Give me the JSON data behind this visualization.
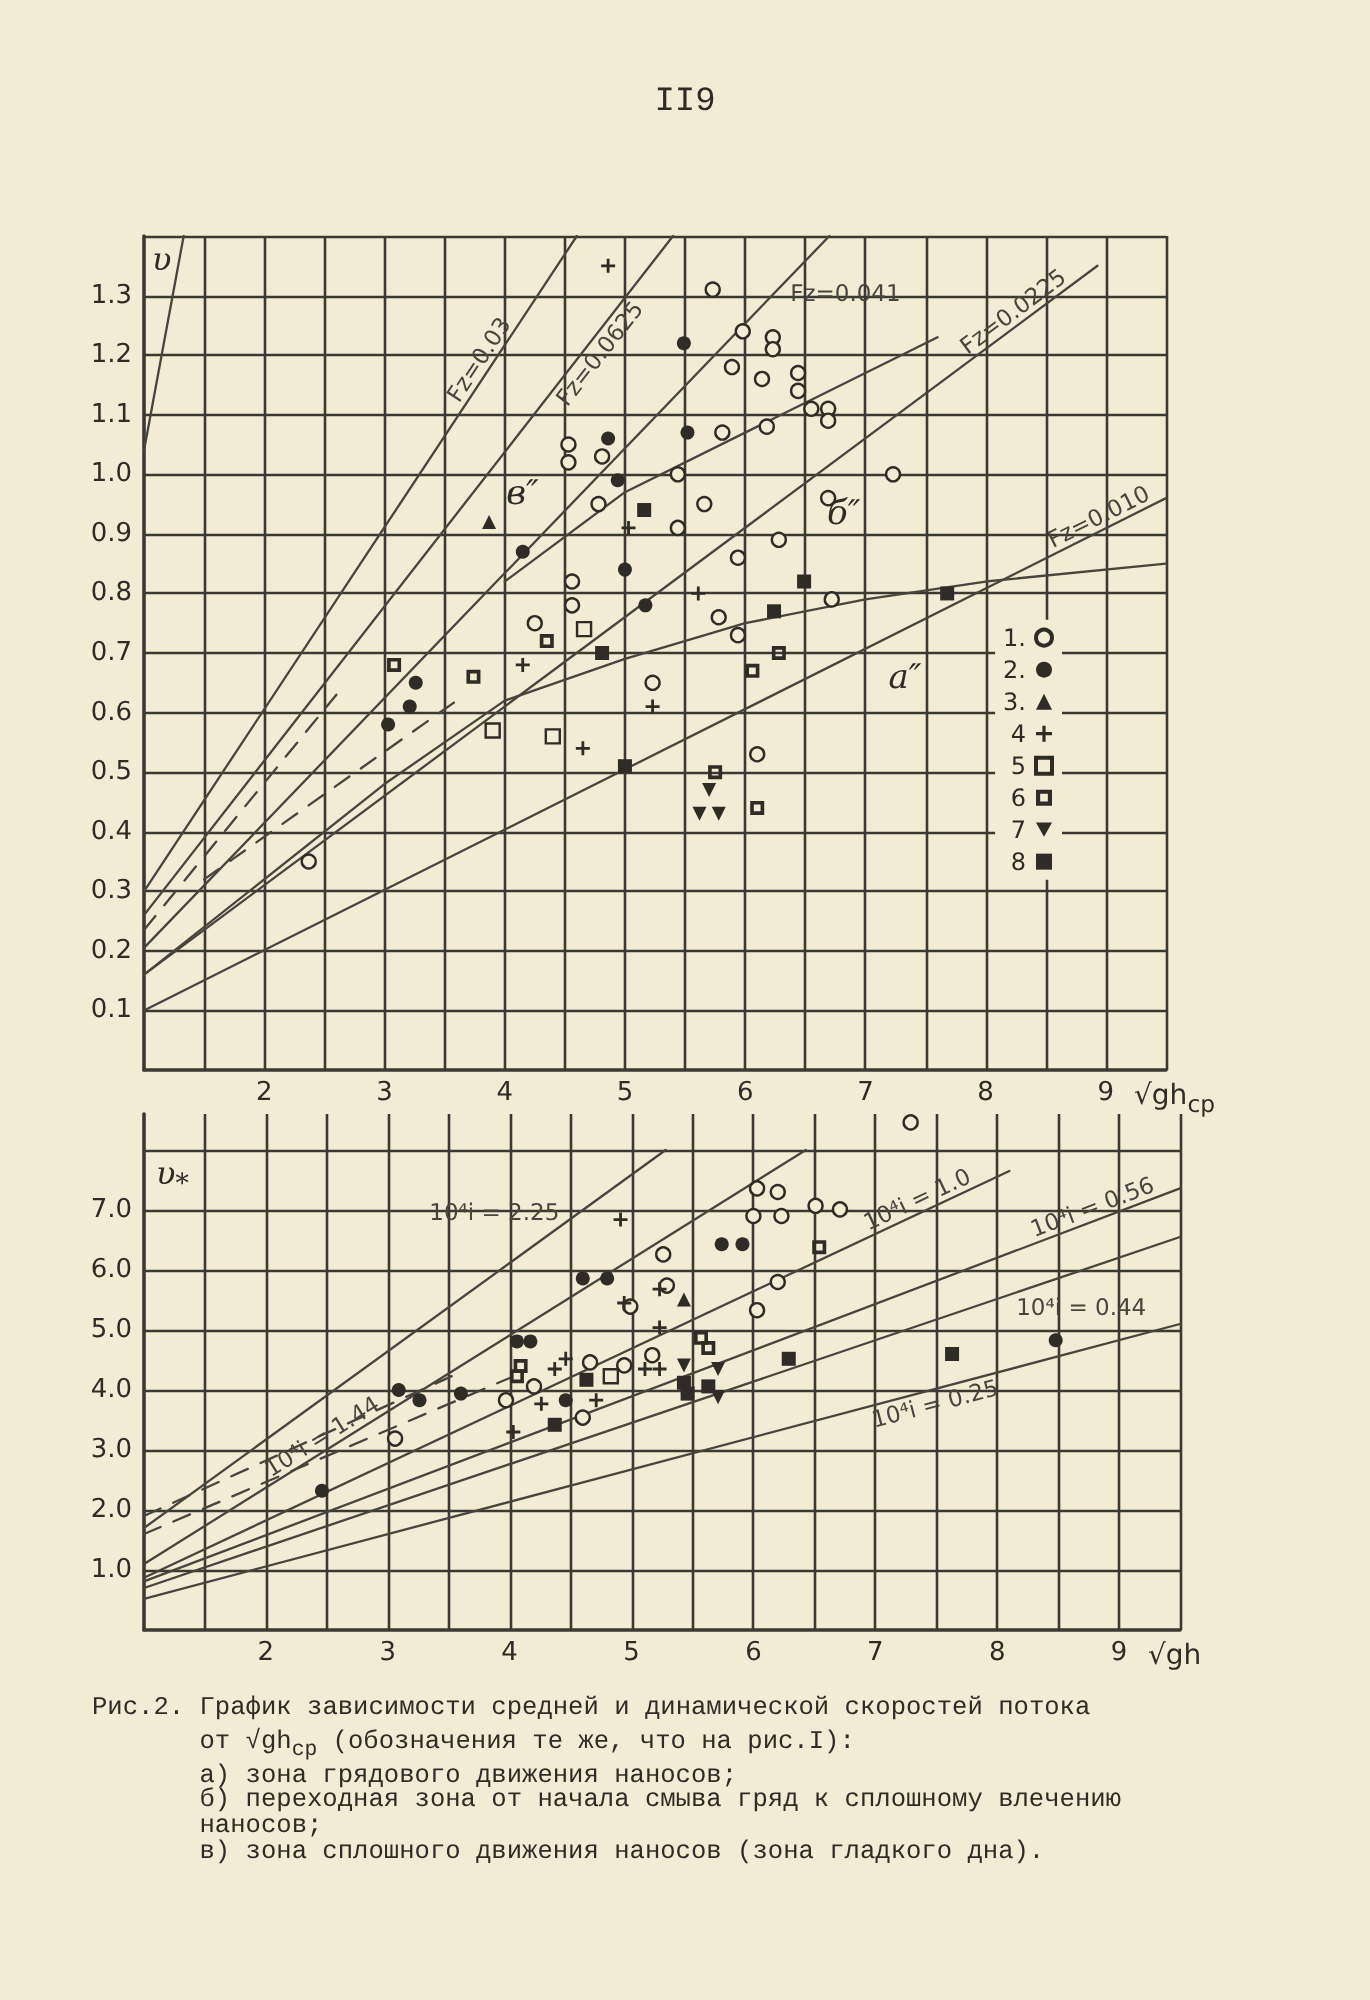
{
  "chart_data": [
    {
      "type": "scatter",
      "xlabel": "√gh$_{ср}$",
      "ylabel": "υ",
      "xlim": [
        1,
        9.5
      ],
      "ylim": [
        0,
        1.4
      ],
      "xticks": [
        {
          "value": 1.5,
          "label": null
        },
        2,
        {
          "value": 2.5,
          "label": null
        },
        3,
        {
          "value": 3.5,
          "label": null
        },
        4,
        {
          "value": 4.5,
          "label": null
        },
        5,
        {
          "value": 5.5,
          "label": null
        },
        6,
        {
          "value": 6.5,
          "label": null
        },
        7,
        {
          "value": 7.5,
          "label": null
        },
        8,
        {
          "value": 8.5,
          "label": null
        },
        9,
        {
          "value": 9.5,
          "label": null
        }
      ],
      "yticks": [
        0.1,
        0.2,
        0.3,
        0.4,
        0.5,
        0.6,
        0.7,
        0.8,
        0.9,
        {
          "value": 1,
          "label": "1.0"
        },
        1.1,
        1.2,
        1.3,
        {
          "value": 1.4,
          "label": null
        }
      ],
      "grid": true,
      "legend": "right",
      "annotations": [
        "II9",
        "в″",
        "б″",
        "а″"
      ],
      "series": [
        {
          "type": "line",
          "marker": "none",
          "line_style": "solid",
          "color": "#48443e",
          "x": [
            1,
            1.33
          ],
          "values": [
            1.04,
            1.4
          ]
        },
        {
          "type": "line",
          "name": "Fz=0.03",
          "marker": "none",
          "line_style": "solid",
          "color": "#48443e",
          "x": [
            1,
            4.6
          ],
          "values": [
            0.3,
            1.4
          ]
        },
        {
          "type": "line",
          "name": "Fz=0.0625",
          "marker": "none",
          "line_style": "solid",
          "color": "#48443e",
          "x": [
            1,
            5.4
          ],
          "values": [
            0.26,
            1.4
          ]
        },
        {
          "type": "line",
          "name": "Fz=0.041",
          "marker": "none",
          "line_style": "solid",
          "color": "#48443e",
          "x": [
            1,
            6.7
          ],
          "values": [
            0.205,
            1.4
          ]
        },
        {
          "type": "line",
          "name": "Fz=0.0225",
          "marker": "none",
          "line_style": "solid",
          "color": "#48443e",
          "x": [
            1,
            8.93
          ],
          "values": [
            0.16,
            1.35
          ]
        },
        {
          "type": "line",
          "name": "Fz=0.010",
          "marker": "none",
          "line_style": "solid",
          "color": "#48443e",
          "x": [
            1,
            9.5
          ],
          "values": [
            0.1,
            0.96
          ]
        },
        {
          "type": "line",
          "marker": "none",
          "line_style": "solid",
          "color": "#48443e",
          "x": [
            1,
            3,
            4,
            5,
            6,
            7,
            8,
            9.5
          ],
          "values": [
            0.16,
            0.48,
            0.62,
            0.69,
            0.75,
            0.79,
            0.82,
            0.85
          ]
        },
        {
          "type": "line",
          "marker": "none",
          "line_style": "solid",
          "color": "#48443e",
          "x": [
            4,
            5,
            6.1,
            7.6
          ],
          "values": [
            0.82,
            0.97,
            1.08,
            1.23
          ]
        },
        {
          "type": "line",
          "marker": "none",
          "line_style": "dashed",
          "color": "#48443e",
          "x": [
            1,
            2.6
          ],
          "values": [
            0.235,
            0.63
          ]
        },
        {
          "type": "line",
          "marker": "none",
          "line_style": "dashed",
          "color": "#48443e",
          "x": [
            1.5,
            3.6
          ],
          "values": [
            0.32,
            0.62
          ]
        },
        {
          "name": "1.",
          "marker": "circle",
          "color": "#2f2b26",
          "x": [
            5.73,
            5.98,
            6.23,
            6.23,
            5.89,
            6.14,
            6.44,
            6.44,
            6.55,
            6.69,
            6.69,
            6.18,
            5.44,
            5.66,
            5.44,
            6.28,
            6.69,
            7.23,
            5.94,
            5.78,
            5.94,
            4.53,
            4.53,
            4.56,
            4.56,
            4.25,
            5.23,
            6.1,
            2.37,
            4.81,
            4.78,
            5.81,
            6.72
          ],
          "values": [
            1.31,
            1.24,
            1.23,
            1.21,
            1.18,
            1.16,
            1.17,
            1.14,
            1.11,
            1.11,
            1.09,
            1.08,
            1.0,
            0.95,
            0.91,
            0.89,
            0.96,
            1.0,
            0.86,
            0.76,
            0.73,
            1.05,
            1.02,
            0.82,
            0.78,
            0.75,
            0.65,
            0.53,
            0.35,
            1.03,
            0.95,
            1.07,
            0.79
          ]
        },
        {
          "name": "2.",
          "marker": "circle",
          "color": "#2f2b26",
          "x": [
            5.49,
            5.52,
            4.15,
            5.0,
            5.17,
            3.26,
            3.21,
            3.03,
            4.94,
            4.86
          ],
          "values": [
            1.22,
            1.07,
            0.87,
            0.84,
            0.78,
            0.65,
            0.61,
            0.58,
            0.99,
            1.06
          ]
        },
        {
          "name": "3.",
          "marker": "triangle",
          "color": "#2f2b26",
          "x": [
            3.87
          ],
          "values": [
            0.92
          ]
        },
        {
          "name": "4",
          "marker": "cross",
          "color": "#2f2b26",
          "x": [
            4.86,
            5.61,
            5.23,
            4.15,
            4.65,
            5.03
          ],
          "values": [
            1.35,
            0.8,
            0.61,
            0.68,
            0.54,
            0.91
          ]
        },
        {
          "name": "5",
          "marker": "square",
          "color": "#2f2b26",
          "x": [
            4.4,
            3.9,
            4.66
          ],
          "values": [
            0.56,
            0.57,
            0.74
          ]
        },
        {
          "name": "6",
          "marker": "square",
          "color": "#2f2b26",
          "x": [
            3.08,
            3.74,
            6.06,
            6.28,
            5.75,
            6.1,
            4.35
          ],
          "values": [
            0.68,
            0.66,
            0.67,
            0.7,
            0.5,
            0.44,
            0.72
          ]
        },
        {
          "name": "7",
          "marker": "triangle",
          "color": "#2f2b26",
          "x": [
            5.7,
            5.62,
            5.78
          ],
          "values": [
            0.47,
            0.43,
            0.43
          ]
        },
        {
          "name": "8",
          "marker": "square",
          "color": "#2f2b26",
          "x": [
            5.16,
            6.49,
            6.24,
            7.68,
            5.0,
            4.81
          ],
          "values": [
            0.94,
            0.82,
            0.77,
            0.8,
            0.51,
            0.7
          ]
        }
      ]
    },
    {
      "type": "scatter",
      "xlabel": "√gh",
      "ylabel": "υ$_{*}$",
      "xlim": [
        1,
        9.5
      ],
      "ylim": [
        0,
        8.6
      ],
      "xticks": [
        {
          "value": 1.5,
          "label": null
        },
        2,
        {
          "value": 2.5,
          "label": null
        },
        3,
        {
          "value": 3.5,
          "label": null
        },
        4,
        {
          "value": 4.5,
          "label": null
        },
        5,
        {
          "value": 5.5,
          "label": null
        },
        6,
        {
          "value": 6.5,
          "label": null
        },
        7,
        {
          "value": 7.5,
          "label": null
        },
        8,
        {
          "value": 8.5,
          "label": null
        },
        9,
        {
          "value": 9.5,
          "label": null
        }
      ],
      "yticks": [
        {
          "value": 1,
          "label": "1.0"
        },
        {
          "value": 2,
          "label": "2.0"
        },
        {
          "value": 3,
          "label": "3.0"
        },
        {
          "value": 4,
          "label": "4.0"
        },
        {
          "value": 5,
          "label": "5.0"
        },
        {
          "value": 6,
          "label": "6.0"
        },
        {
          "value": 7,
          "label": "7.0"
        },
        {
          "value": 8,
          "label": null
        }
      ],
      "grid": true,
      "annotations": [
        "Рис.2. График зависимости средней и динамической скоростей потока\nот √gh$_{ср}$ (обозначения те же, что на рис.I):\nа) зона грядового движения наносов;\nб) переходная зона от начала смыва гряд к сплошному влечению\nнаносов;\nв) зона сплошного движения наносов (зона гладкого дна)."
      ],
      "series": [
        {
          "type": "line",
          "name": "10⁴i = 2.25",
          "marker": "none",
          "line_style": "solid",
          "color": "#48443e",
          "x": [
            1,
            5.28
          ],
          "values": [
            1.7,
            8
          ]
        },
        {
          "type": "line",
          "name": "10⁴i = 1.44",
          "marker": "none",
          "line_style": "solid",
          "color": "#48443e",
          "x": [
            1,
            6.43
          ],
          "values": [
            1.1,
            8
          ]
        },
        {
          "type": "line",
          "name": "10⁴i = 1.0",
          "marker": "none",
          "line_style": "solid",
          "color": "#48443e",
          "x": [
            1,
            8.1
          ],
          "values": [
            0.87,
            7.65
          ]
        },
        {
          "type": "line",
          "name": "10⁴i = 0.56",
          "marker": "none",
          "line_style": "solid",
          "color": "#48443e",
          "x": [
            1,
            9.5
          ],
          "values": [
            0.81,
            7.36
          ]
        },
        {
          "type": "line",
          "name": "10⁴i = 0.44",
          "marker": "none",
          "line_style": "solid",
          "color": "#48443e",
          "x": [
            1,
            9.5
          ],
          "values": [
            0.7,
            6.55
          ]
        },
        {
          "type": "line",
          "name": "10⁴i = 0.25",
          "marker": "none",
          "line_style": "solid",
          "color": "#48443e",
          "x": [
            1,
            9.5
          ],
          "values": [
            0.52,
            5.1
          ]
        },
        {
          "type": "line",
          "marker": "none",
          "line_style": "dashed",
          "color": "#48443e",
          "x": [
            1,
            3.6
          ],
          "values": [
            1.9,
            4.3
          ]
        },
        {
          "type": "line",
          "marker": "none",
          "line_style": "dashed",
          "color": "#48443e",
          "x": [
            1,
            4.0
          ],
          "values": [
            1.6,
            4.2
          ]
        },
        {
          "marker": "circle",
          "color": "#2f2b26",
          "x": [
            3.06,
            3.97,
            4.2,
            4.6,
            4.66,
            4.94,
            4.99,
            5.17,
            5.29,
            5.26,
            6.0,
            6.03,
            6.2,
            6.23,
            6.03,
            6.2,
            6.51,
            6.71,
            7.29
          ],
          "values": [
            3.19,
            3.83,
            4.06,
            3.54,
            4.46,
            4.41,
            5.39,
            4.58,
            5.74,
            6.26,
            6.9,
            7.36,
            7.3,
            6.9,
            5.33,
            5.8,
            7.07,
            7.01,
            8.46
          ]
        },
        {
          "marker": "circle",
          "color": "#2f2b26",
          "x": [
            2.46,
            3.09,
            3.26,
            3.6,
            4.46,
            4.06,
            4.17,
            4.6,
            4.8,
            5.74,
            5.91,
            8.48
          ],
          "values": [
            2.32,
            4.0,
            3.83,
            3.94,
            3.83,
            4.81,
            4.81,
            5.86,
            5.86,
            6.43,
            6.43,
            4.83
          ]
        },
        {
          "marker": "triangle",
          "color": "#2f2b26",
          "x": [
            5.43
          ],
          "values": [
            5.51
          ]
        },
        {
          "marker": "cross",
          "color": "#2f2b26",
          "x": [
            4.03,
            4.26,
            4.37,
            4.46,
            4.94,
            4.91,
            5.11,
            5.23,
            5.23,
            5.23,
            4.71
          ],
          "values": [
            3.3,
            3.77,
            4.35,
            4.52,
            5.45,
            6.84,
            4.35,
            4.35,
            5.04,
            5.68,
            3.83
          ]
        },
        {
          "marker": "square",
          "color": "#2f2b26",
          "x": [
            4.83
          ],
          "values": [
            4.23
          ]
        },
        {
          "marker": "square",
          "color": "#2f2b26",
          "x": [
            4.06,
            4.09,
            5.57,
            5.63,
            6.54
          ],
          "values": [
            4.23,
            4.4,
            4.87,
            4.7,
            6.38
          ]
        },
        {
          "marker": "triangle",
          "color": "#2f2b26",
          "x": [
            5.43,
            5.71,
            5.71
          ],
          "values": [
            4.41,
            4.35,
            3.88
          ]
        },
        {
          "marker": "square",
          "color": "#2f2b26",
          "x": [
            4.37,
            4.63,
            5.43,
            5.46,
            5.63,
            6.29,
            7.63
          ],
          "values": [
            3.42,
            4.17,
            4.12,
            3.94,
            4.06,
            4.52,
            4.6
          ]
        }
      ]
    }
  ]
}
